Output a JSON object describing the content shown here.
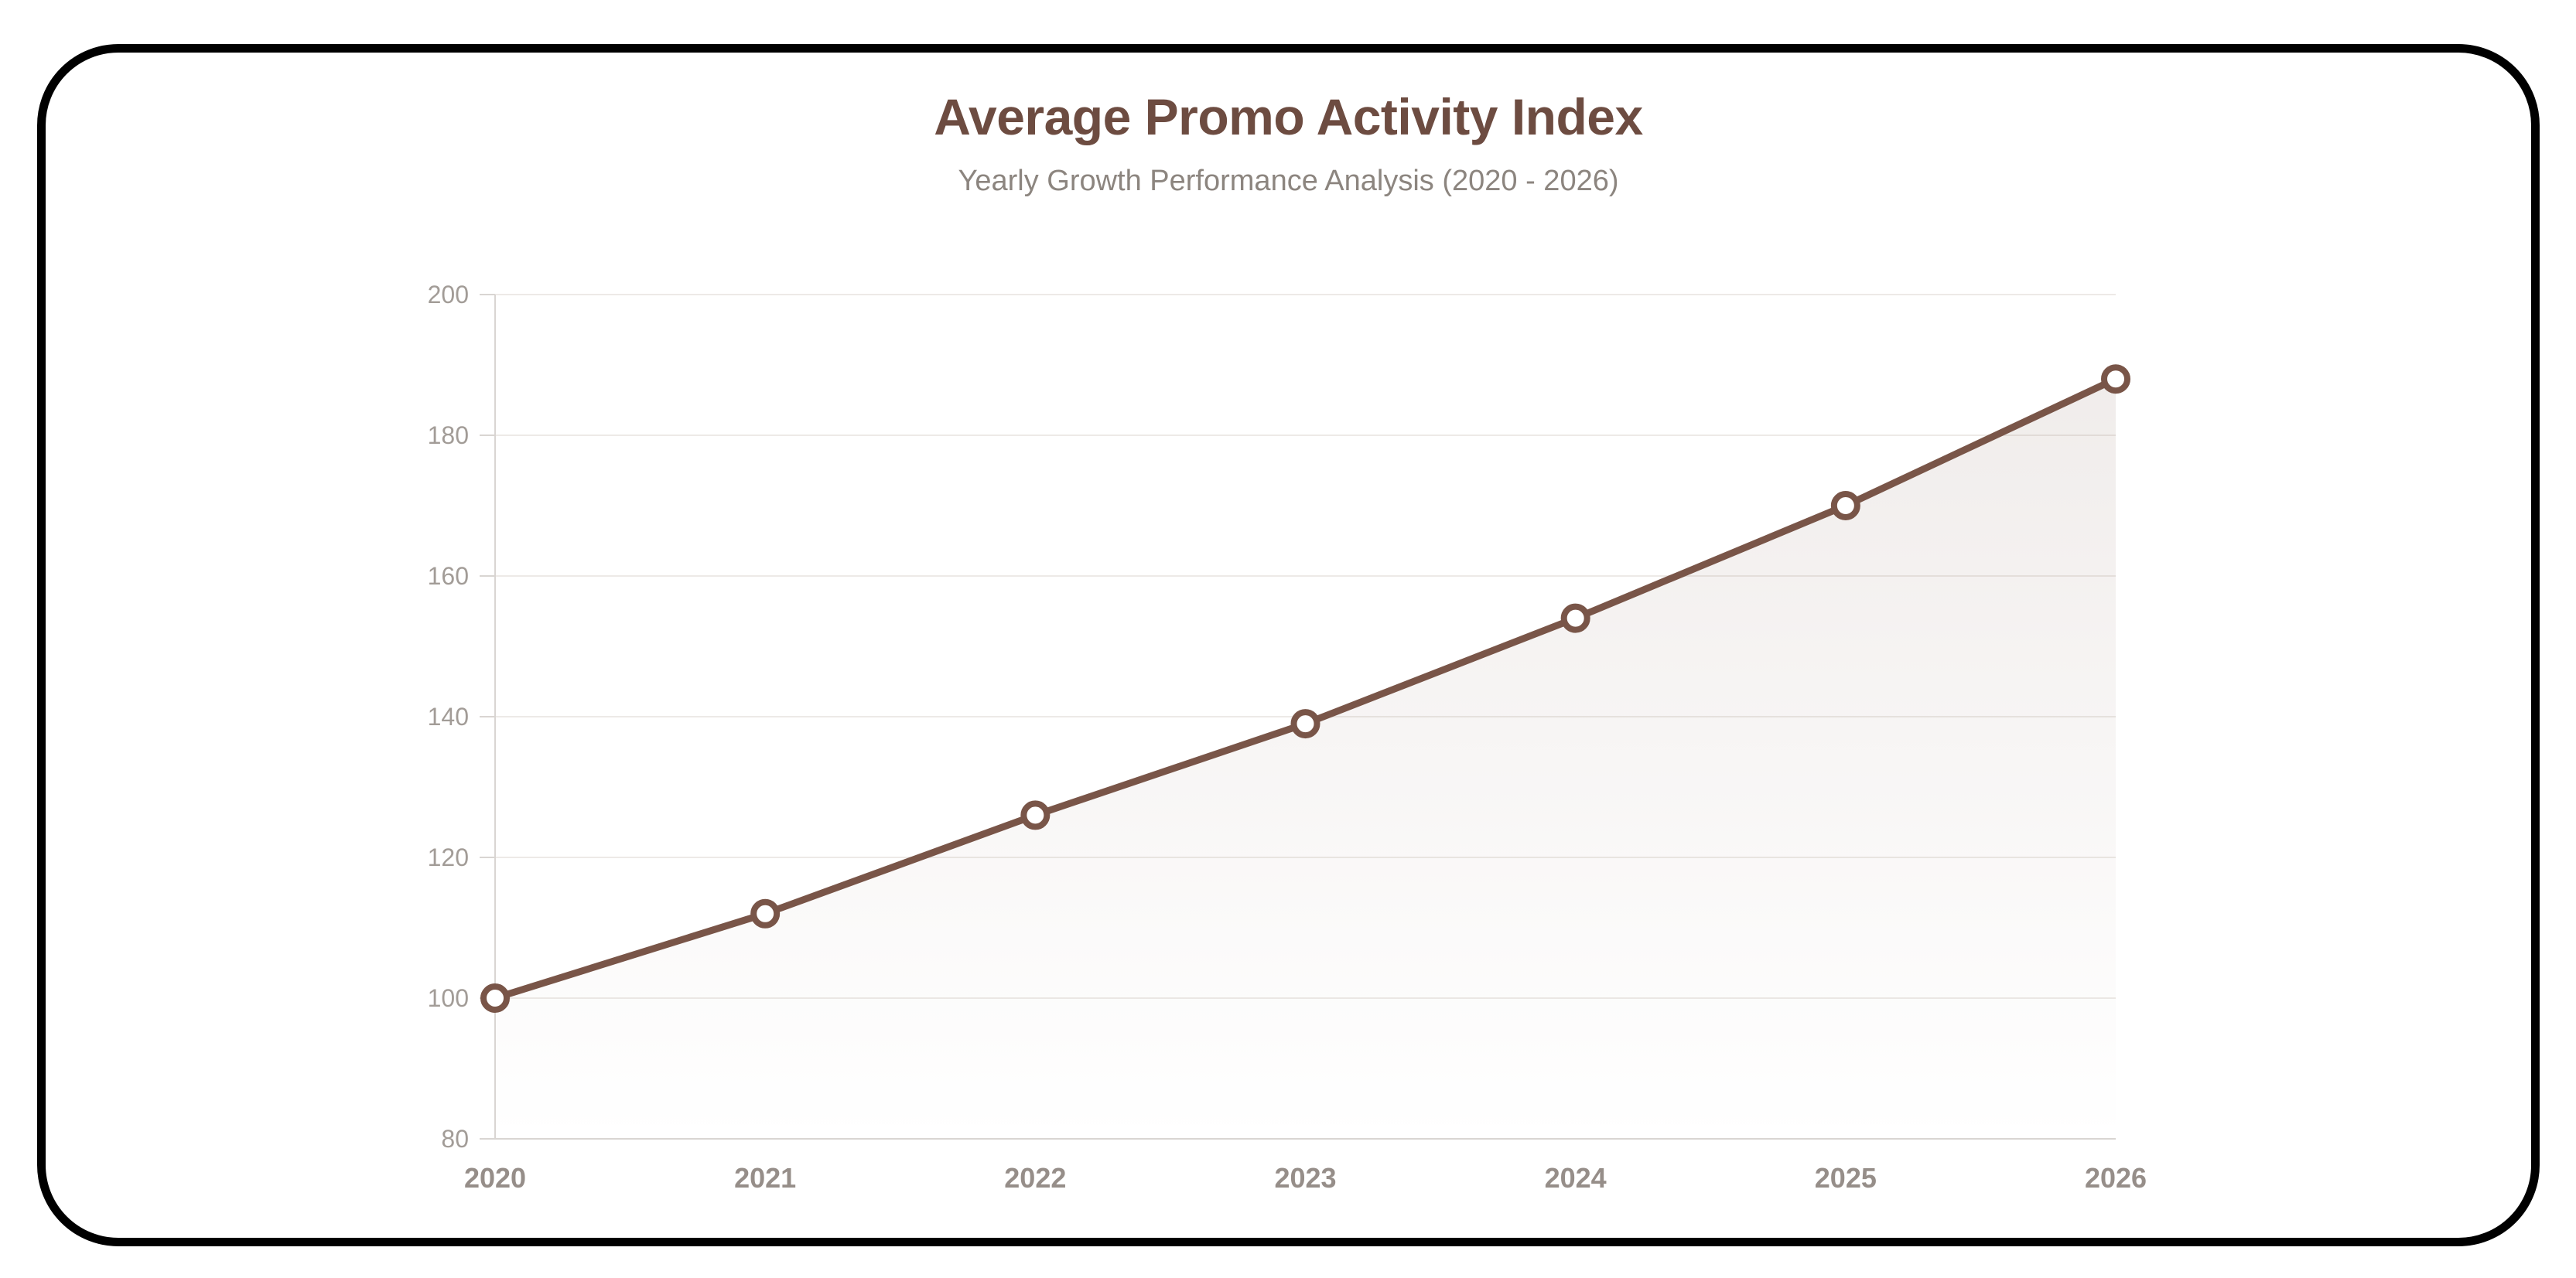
{
  "chart_data": {
    "type": "line",
    "title": "Average Promo Activity Index",
    "subtitle": "Yearly Growth Performance Analysis (2020 - 2026)",
    "x": [
      "2020",
      "2021",
      "2022",
      "2023",
      "2024",
      "2025",
      "2026"
    ],
    "series": [
      {
        "name": "Average Promo Activity Index",
        "values": [
          100,
          112,
          126,
          139,
          154,
          170,
          188
        ]
      }
    ],
    "xlabel": "",
    "ylabel": "",
    "ylim": [
      80,
      200
    ],
    "yticks": [
      80,
      100,
      120,
      140,
      160,
      180,
      200
    ],
    "grid": "horizontal",
    "legend_position": "none",
    "marker": "open-circle",
    "area_fill": true
  },
  "style": {
    "colors": {
      "title": "#6d4c41",
      "subtitle": "#8c857f",
      "line": "#795548",
      "marker_fill": "#ffffff",
      "area_top": "rgba(121,85,72,0.11)",
      "area_bottom": "rgba(121,85,72,0)",
      "axis": "#d9d5d2",
      "grid": "#edeae7",
      "y_tick_label": "#a29c97",
      "x_tick_label": "#968e89",
      "frame_border": "#000000",
      "background": "#ffffff"
    }
  }
}
